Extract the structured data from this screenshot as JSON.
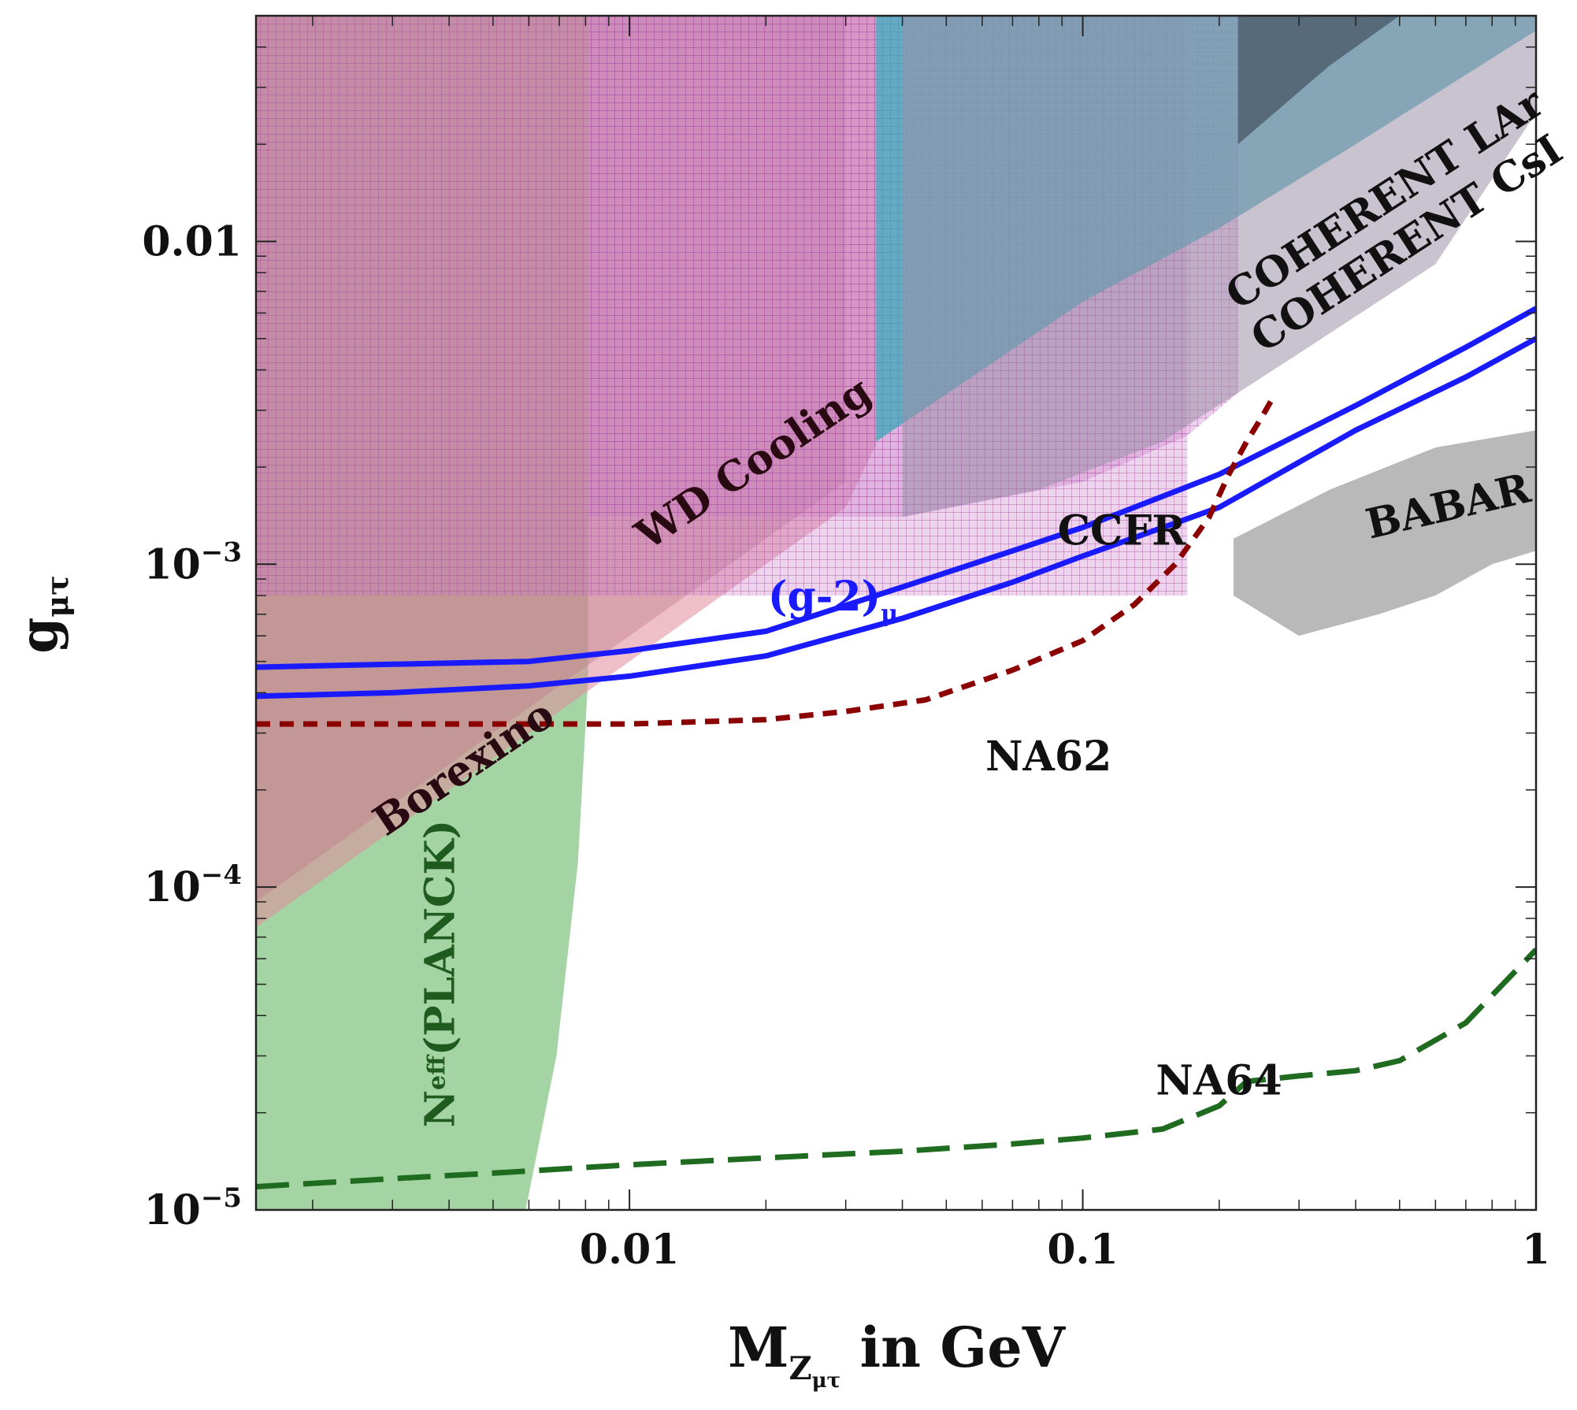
{
  "chart_data": {
    "type": "line",
    "x_scale": "log",
    "y_scale": "log",
    "xlim": [
      0.0015,
      1
    ],
    "ylim": [
      1e-05,
      0.05
    ],
    "grid": false,
    "xlabel": {
      "main": "M",
      "sub1": "Z",
      "sub2": "μτ",
      "rest": " in GeV"
    },
    "ylabel": {
      "main": "g",
      "sub": "μτ"
    },
    "x_ticks": [
      {
        "value": 0.01,
        "label": "0.01"
      },
      {
        "value": 0.1,
        "label": "0.1"
      },
      {
        "value": 1,
        "label": "1"
      }
    ],
    "y_ticks": [
      {
        "value": 0.01,
        "base": "0.01",
        "exp": ""
      },
      {
        "value": 0.001,
        "base": "10",
        "exp": "−3"
      },
      {
        "value": 0.0001,
        "base": "10",
        "exp": "−4"
      },
      {
        "value": 1e-05,
        "base": "10",
        "exp": "−5"
      }
    ],
    "regions": [
      {
        "name": "Neff (PLANCK)",
        "color": "#9fd29f",
        "opacity": 0.95,
        "polygon": [
          [
            0.0015,
            1e-05
          ],
          [
            0.0015,
            0.05
          ],
          [
            0.0081,
            0.05
          ],
          [
            0.0081,
            0.00044
          ],
          [
            0.0077,
            0.00012
          ],
          [
            0.0069,
            3e-05
          ],
          [
            0.0059,
            1e-05
          ]
        ]
      },
      {
        "name": "Borexino",
        "color": "#9a6f7a",
        "opacity": 0.45,
        "polygon": [
          [
            0.0015,
            9e-05
          ],
          [
            0.003,
            0.00018
          ],
          [
            0.01,
            0.0006
          ],
          [
            0.03,
            0.0018
          ],
          [
            0.03,
            0.05
          ],
          [
            0.0015,
            0.05
          ]
        ]
      },
      {
        "name": "WD Cooling",
        "color": "#e08a9a",
        "opacity": 0.55,
        "polygon": [
          [
            0.0015,
            7.5e-05
          ],
          [
            0.004,
            0.0002
          ],
          [
            0.01,
            0.0005
          ],
          [
            0.03,
            0.0015
          ],
          [
            0.035,
            0.00235
          ],
          [
            0.035,
            0.05
          ],
          [
            0.0015,
            0.05
          ]
        ]
      },
      {
        "name": "CCFR",
        "color": "#c77ac7",
        "opacity": 0.32,
        "hatch": true,
        "polygon": [
          [
            0.0015,
            0.0008
          ],
          [
            0.0081,
            0.0008
          ],
          [
            0.02,
            0.0008
          ],
          [
            0.1,
            0.0008
          ],
          [
            0.17,
            0.0008
          ],
          [
            0.17,
            0.05
          ],
          [
            0.0015,
            0.05
          ]
        ]
      },
      {
        "name": "CCFR upper",
        "color": "#c77ac7",
        "opacity": 0.35,
        "hatch": true,
        "polygon": [
          [
            0.0081,
            0.0014
          ],
          [
            0.04,
            0.0014
          ],
          [
            0.1,
            0.0018
          ],
          [
            0.17,
            0.0025
          ],
          [
            0.22,
            0.0034
          ],
          [
            0.22,
            0.05
          ],
          [
            0.0081,
            0.05
          ]
        ]
      },
      {
        "name": "COHERENT LAr",
        "color": "#3aa8b8",
        "opacity": 0.75,
        "polygon": [
          [
            0.035,
            0.0024
          ],
          [
            0.06,
            0.004
          ],
          [
            0.1,
            0.0065
          ],
          [
            0.2,
            0.011
          ],
          [
            0.4,
            0.02
          ],
          [
            1,
            0.045
          ],
          [
            1,
            0.05
          ],
          [
            0.035,
            0.05
          ]
        ]
      },
      {
        "name": "COHERENT CsI",
        "color": "#9c8fa8",
        "opacity": 0.55,
        "polygon": [
          [
            0.04,
            0.0014
          ],
          [
            0.08,
            0.0017
          ],
          [
            0.15,
            0.0024
          ],
          [
            0.3,
            0.0045
          ],
          [
            0.6,
            0.0085
          ],
          [
            1,
            0.025
          ],
          [
            1,
            0.05
          ],
          [
            0.04,
            0.05
          ]
        ]
      },
      {
        "name": "dark overlay",
        "color": "#303a48",
        "opacity": 0.55,
        "polygon": [
          [
            0.22,
            0.02
          ],
          [
            0.35,
            0.035
          ],
          [
            0.5,
            0.05
          ],
          [
            0.22,
            0.05
          ]
        ]
      },
      {
        "name": "BABAR",
        "color": "#b5b5b5",
        "opacity": 0.95,
        "polygon": [
          [
            0.215,
            0.0012
          ],
          [
            0.35,
            0.0017
          ],
          [
            0.6,
            0.0023
          ],
          [
            1,
            0.0026
          ],
          [
            1,
            0.0011
          ],
          [
            0.8,
            0.001
          ],
          [
            0.6,
            0.0008
          ],
          [
            0.45,
            0.0007
          ],
          [
            0.3,
            0.0006
          ],
          [
            0.215,
            0.0008
          ]
        ]
      }
    ],
    "series": [
      {
        "name": "(g-2)μ upper",
        "color": "#1a1aff",
        "dash": "solid",
        "x": [
          0.0015,
          0.003,
          0.006,
          0.01,
          0.02,
          0.04,
          0.07,
          0.1,
          0.2,
          0.4,
          0.7,
          1
        ],
        "y": [
          0.00048,
          0.00049,
          0.0005,
          0.00054,
          0.00062,
          0.00085,
          0.0011,
          0.0013,
          0.0019,
          0.0031,
          0.0047,
          0.0062
        ]
      },
      {
        "name": "(g-2)μ lower",
        "color": "#1a1aff",
        "dash": "solid",
        "x": [
          0.0015,
          0.003,
          0.006,
          0.01,
          0.02,
          0.04,
          0.07,
          0.1,
          0.2,
          0.4,
          0.7,
          1
        ],
        "y": [
          0.00039,
          0.0004,
          0.00042,
          0.00045,
          0.00052,
          0.00068,
          0.00088,
          0.00106,
          0.0015,
          0.0026,
          0.0038,
          0.005
        ]
      },
      {
        "name": "NA62",
        "color": "#8b0000",
        "dash": "dashed",
        "x": [
          0.0015,
          0.005,
          0.01,
          0.02,
          0.03,
          0.045,
          0.07,
          0.1,
          0.13,
          0.16,
          0.19,
          0.21,
          0.23,
          0.25,
          0.26
        ],
        "y": [
          0.00032,
          0.00032,
          0.00032,
          0.00033,
          0.00035,
          0.00038,
          0.00047,
          0.00058,
          0.00075,
          0.001,
          0.0014,
          0.0019,
          0.0024,
          0.0029,
          0.0032
        ]
      },
      {
        "name": "NA64",
        "color": "#1f6b1f",
        "dash": "longdash",
        "x": [
          0.0015,
          0.003,
          0.005,
          0.01,
          0.02,
          0.04,
          0.07,
          0.1,
          0.15,
          0.2,
          0.23,
          0.3,
          0.4,
          0.5,
          0.7,
          1
        ],
        "y": [
          1.18e-05,
          1.25e-05,
          1.3e-05,
          1.38e-05,
          1.45e-05,
          1.52e-05,
          1.6e-05,
          1.67e-05,
          1.78e-05,
          2.1e-05,
          2.5e-05,
          2.6e-05,
          2.7e-05,
          2.9e-05,
          3.8e-05,
          6.4e-05
        ]
      }
    ],
    "annotations": [
      {
        "id": "wd",
        "text": "WD  Cooling",
        "color": "#2a0a12",
        "x": 0.011,
        "y": 0.0011,
        "angle": -34
      },
      {
        "id": "borexino",
        "text": "Borexino",
        "color": "#2a0a12",
        "x": 0.0029,
        "y": 0.000143,
        "angle": -34
      },
      {
        "id": "coh-lar",
        "text": "COHERENT  LAr",
        "color": "#111111",
        "x": 0.22,
        "y": 0.0061,
        "angle": -33
      },
      {
        "id": "coh-csi",
        "text": "COHERENT  CsI",
        "color": "#111111",
        "x": 0.25,
        "y": 0.0045,
        "angle": -33
      },
      {
        "id": "ccfr",
        "text": "CCFR",
        "color": "#111111",
        "x": 0.088,
        "y": 0.00115,
        "angle": 0
      },
      {
        "id": "babar",
        "text": "BABAR",
        "color": "#111111",
        "x": 0.43,
        "y": 0.0012,
        "angle": -13
      },
      {
        "id": "na62",
        "text": "NA62",
        "color": "#111111",
        "x": 0.061,
        "y": 0.00023,
        "angle": 0
      },
      {
        "id": "na64",
        "text": "NA64",
        "color": "#111111",
        "x": 0.145,
        "y": 2.28e-05,
        "angle": 0
      }
    ],
    "g2_label": {
      "main": "(g-2)",
      "sub": "μ",
      "color": "#1a1aff",
      "x": 0.0202,
      "y": 0.00072
    },
    "neff_label": {
      "main": "N",
      "sub": "eff",
      "rest": "(PLANCK)",
      "color": "#1f5a1f",
      "x": 0.0041,
      "y": 1.8e-05,
      "angle": -90
    }
  }
}
